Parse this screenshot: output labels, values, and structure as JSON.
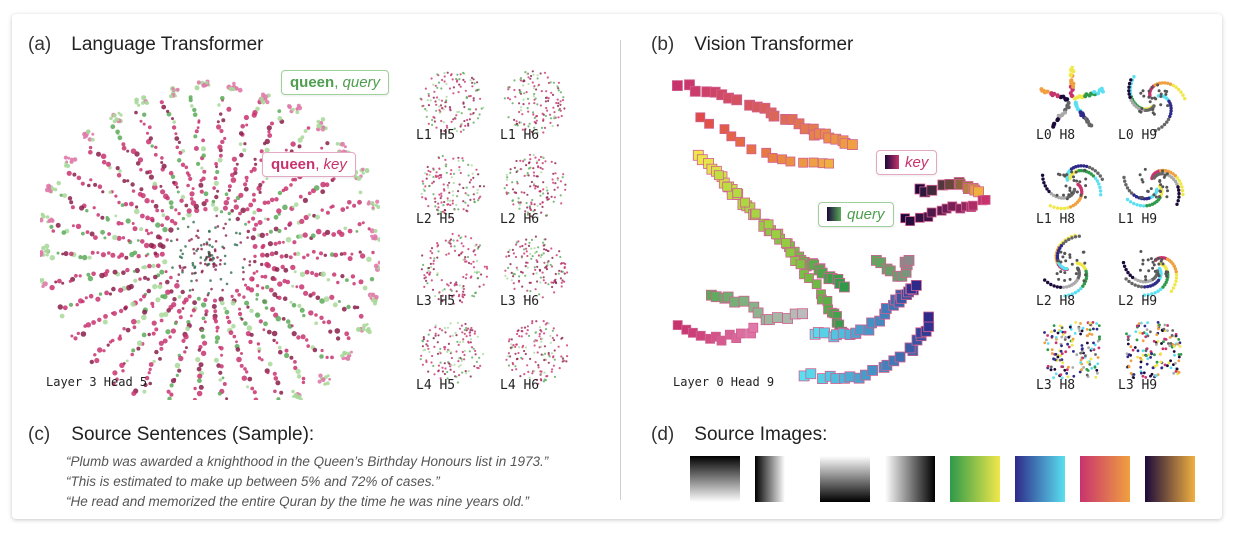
{
  "panels": {
    "a": {
      "tag": "(a)",
      "title": "Language Transformer",
      "main_label": "Layer 3 Head 5",
      "callout_query_bold": "queen",
      "callout_query_sep": ", ",
      "callout_query_italic": "query",
      "callout_key_bold": "queen",
      "callout_key_sep": ", ",
      "callout_key_italic": "key",
      "thumbs": [
        "L1 H5",
        "L1 H6",
        "L2 H5",
        "L2 H6",
        "L3 H5",
        "L3 H6",
        "L4 H5",
        "L4 H6"
      ]
    },
    "b": {
      "tag": "(b)",
      "title": "Vision Transformer",
      "main_label": "Layer 0 Head 9",
      "callout_key": "key",
      "callout_query": "query",
      "thumbs": [
        "L0 H8",
        "L0 H9",
        "L1 H8",
        "L1 H9",
        "L2 H8",
        "L2 H9",
        "L3 H8",
        "L3 H9"
      ]
    },
    "c": {
      "tag": "(c)",
      "title": "Source Sentences (Sample):",
      "sentences": [
        "“Plumb was awarded a knighthood in the Queen’s Birthday Honours list in 1973.”",
        "“This is estimated to make up between 5% and 72% of cases.”",
        "“He read and memorized the entire Quran by the time he was nine years old.”"
      ]
    },
    "d": {
      "tag": "(d)",
      "title": "Source Images:"
    }
  },
  "colors": {
    "query": "#5aaa5a",
    "key": "#c8336e",
    "query_light": "#a8d89a",
    "key_light": "#e07aaa",
    "dark": "#8a1e4a"
  },
  "swatches": [
    {
      "name": "gray-vertical",
      "from": "#000000",
      "to": "#ffffff",
      "dir": "180deg"
    },
    {
      "name": "gray-horizontal-center",
      "from": "#000000",
      "to": "#ffffff",
      "dir": "90deg"
    },
    {
      "name": "gray-vertical-inverted",
      "from": "#ffffff",
      "to": "#000000",
      "dir": "180deg"
    },
    {
      "name": "gray-horizontal-inverted",
      "from": "#ffffff",
      "to": "#000000",
      "dir": "90deg"
    },
    {
      "name": "green-yellow",
      "from": "#2e9a4a",
      "to": "#f0e84a",
      "dir": "90deg"
    },
    {
      "name": "blue-cyan",
      "from": "#2e2a8a",
      "to": "#5ae0f0",
      "dir": "90deg"
    },
    {
      "name": "red-orange",
      "from": "#c8336e",
      "to": "#f0a040",
      "dir": "90deg"
    },
    {
      "name": "purple-gold",
      "from": "#1a0a3a",
      "to": "#f0b040",
      "dir": "90deg"
    }
  ]
}
